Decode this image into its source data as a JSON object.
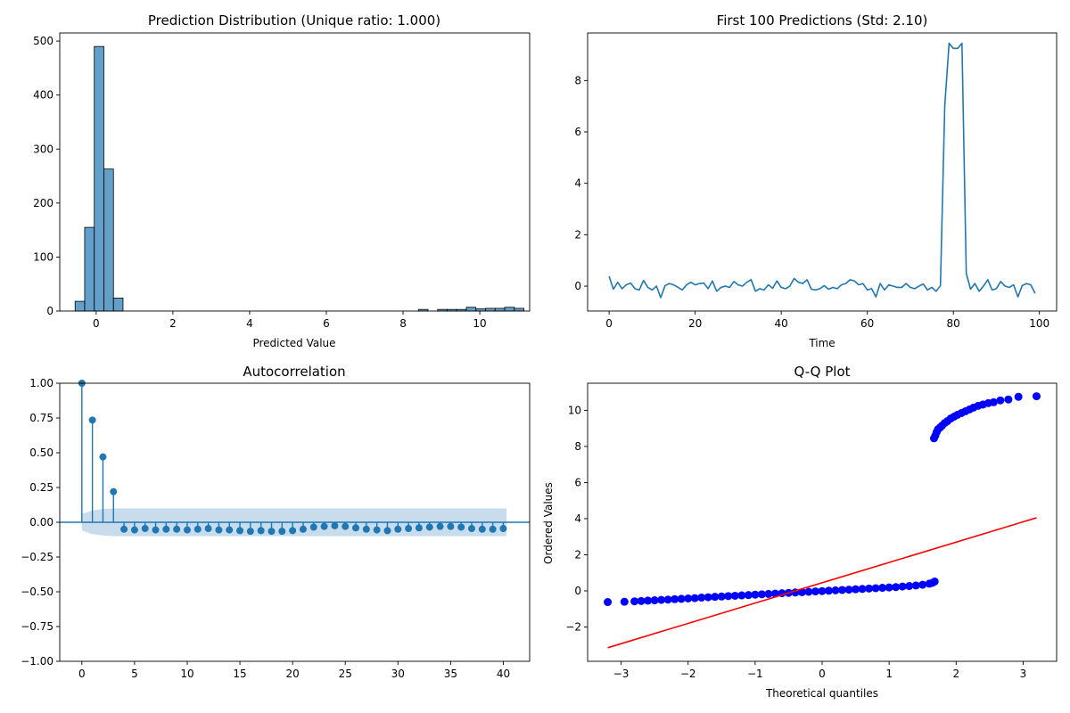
{
  "chart_data": [
    {
      "type": "bar",
      "subtype": "histogram",
      "title": "Prediction Distribution (Unique ratio: 1.000)",
      "xlabel": "Predicted Value",
      "ylabel": "",
      "xlim": [
        -0.95,
        11.3
      ],
      "ylim": [
        0,
        515
      ],
      "xticks": [
        0,
        2,
        4,
        6,
        8,
        10
      ],
      "yticks": [
        0,
        100,
        200,
        300,
        400,
        500
      ],
      "bin_width": 0.25,
      "bins": [
        {
          "x0": -0.55,
          "value": 18
        },
        {
          "x0": -0.3,
          "value": 155
        },
        {
          "x0": -0.05,
          "value": 490
        },
        {
          "x0": 0.2,
          "value": 263
        },
        {
          "x0": 0.45,
          "value": 24
        },
        {
          "x0": 8.4,
          "value": 3
        },
        {
          "x0": 8.9,
          "value": 3
        },
        {
          "x0": 9.15,
          "value": 3
        },
        {
          "x0": 9.4,
          "value": 3
        },
        {
          "x0": 9.65,
          "value": 7
        },
        {
          "x0": 9.9,
          "value": 4
        },
        {
          "x0": 10.15,
          "value": 5
        },
        {
          "x0": 10.4,
          "value": 5
        },
        {
          "x0": 10.65,
          "value": 7
        },
        {
          "x0": 10.9,
          "value": 5
        }
      ],
      "color": "#1f77b4",
      "grid": false
    },
    {
      "type": "line",
      "title": "First 100 Predictions (Std: 2.10)",
      "xlabel": "Time",
      "ylabel": "",
      "xlim": [
        -5,
        104
      ],
      "ylim": [
        -0.97,
        9.85
      ],
      "xticks": [
        0,
        20,
        40,
        60,
        80,
        100
      ],
      "yticks": [
        0,
        2,
        4,
        6,
        8
      ],
      "color": "#1f77b4",
      "values": [
        0.38,
        -0.12,
        0.15,
        -0.1,
        0.05,
        0.12,
        -0.1,
        -0.15,
        0.22,
        -0.05,
        -0.15,
        0.0,
        -0.45,
        0.02,
        0.1,
        0.05,
        -0.05,
        -0.15,
        0.05,
        0.15,
        0.05,
        0.1,
        0.12,
        -0.1,
        0.2,
        -0.2,
        -0.05,
        0.0,
        -0.05,
        0.18,
        0.05,
        0.0,
        0.15,
        0.25,
        -0.2,
        -0.1,
        -0.15,
        0.05,
        -0.08,
        0.2,
        -0.05,
        -0.1,
        0.0,
        0.3,
        0.15,
        0.1,
        0.25,
        -0.12,
        -0.15,
        -0.1,
        0.02,
        -0.12,
        -0.05,
        -0.1,
        0.05,
        0.1,
        0.25,
        0.2,
        0.05,
        0.1,
        -0.15,
        -0.1,
        -0.42,
        0.1,
        -0.15,
        0.05,
        0.0,
        -0.05,
        -0.05,
        0.1,
        -0.05,
        -0.1,
        0.0,
        0.08,
        -0.15,
        -0.05,
        -0.2,
        0.02,
        7.0,
        9.45,
        9.25,
        9.25,
        9.45,
        0.5,
        -0.12,
        0.1,
        -0.2,
        0.0,
        0.25,
        -0.15,
        -0.1,
        0.18,
        0.0,
        -0.05,
        0.05,
        -0.42,
        0.02,
        0.1,
        0.05,
        -0.28
      ],
      "grid": false
    },
    {
      "type": "scatter",
      "subtype": "autocorrelation-stem",
      "title": "Autocorrelation",
      "xlabel": "",
      "ylabel": "",
      "xlim": [
        -2.1,
        42.5
      ],
      "ylim": [
        -1.0,
        1.0
      ],
      "xticks": [
        0,
        5,
        10,
        15,
        20,
        25,
        30,
        35,
        40
      ],
      "yticks": [
        1.0,
        0.75,
        0.5,
        0.25,
        0.0,
        -0.25,
        -0.5,
        -0.75,
        -1.0
      ],
      "ytick_labels": [
        "1.00",
        "0.75",
        "0.50",
        "0.25",
        "0.00",
        "−0.25",
        "−0.50",
        "−0.75",
        "−1.00"
      ],
      "lags": [
        0,
        1,
        2,
        3,
        4,
        5,
        6,
        7,
        8,
        9,
        10,
        11,
        12,
        13,
        14,
        15,
        16,
        17,
        18,
        19,
        20,
        21,
        22,
        23,
        24,
        25,
        26,
        27,
        28,
        29,
        30,
        31,
        32,
        33,
        34,
        35,
        36,
        37,
        38,
        39,
        40
      ],
      "values": [
        1.0,
        0.735,
        0.47,
        0.22,
        -0.05,
        -0.055,
        -0.045,
        -0.055,
        -0.05,
        -0.05,
        -0.055,
        -0.05,
        -0.045,
        -0.055,
        -0.055,
        -0.06,
        -0.065,
        -0.06,
        -0.065,
        -0.065,
        -0.06,
        -0.05,
        -0.035,
        -0.03,
        -0.025,
        -0.03,
        -0.04,
        -0.05,
        -0.055,
        -0.06,
        -0.05,
        -0.045,
        -0.04,
        -0.035,
        -0.03,
        -0.03,
        -0.035,
        -0.045,
        -0.05,
        -0.05,
        -0.045
      ],
      "confidence_band": {
        "lags": [
          0,
          1,
          2,
          3,
          4,
          5,
          10,
          20,
          30,
          40.3
        ],
        "upper": [
          0.06,
          0.085,
          0.095,
          0.1,
          0.1,
          0.1,
          0.1,
          0.1,
          0.1,
          0.1
        ]
      },
      "color": "#1f77b4",
      "band_color": "#c3d8ea",
      "grid": false
    },
    {
      "type": "scatter",
      "subtype": "qq-plot",
      "title": "Q-Q Plot",
      "xlabel": "Theoretical quantiles",
      "ylabel": "Ordered Values",
      "xlim": [
        -3.5,
        3.5
      ],
      "ylim": [
        -3.9,
        11.5
      ],
      "xticks": [
        -3,
        -2,
        -1,
        0,
        1,
        2,
        3
      ],
      "xtick_labels": [
        "−3",
        "−2",
        "−1",
        "0",
        "1",
        "2",
        "3"
      ],
      "yticks": [
        -2,
        0,
        2,
        4,
        6,
        8,
        10
      ],
      "ytick_labels": [
        "−2",
        "0",
        "2",
        "4",
        "6",
        "8",
        "10"
      ],
      "points": [
        [
          -3.2,
          -0.62
        ],
        [
          -2.95,
          -0.6
        ],
        [
          -2.8,
          -0.58
        ],
        [
          -2.7,
          -0.56
        ],
        [
          -2.6,
          -0.54
        ],
        [
          -2.5,
          -0.52
        ],
        [
          -2.4,
          -0.5
        ],
        [
          -2.3,
          -0.48
        ],
        [
          -2.2,
          -0.46
        ],
        [
          -2.1,
          -0.44
        ],
        [
          -2.0,
          -0.42
        ],
        [
          -1.9,
          -0.4
        ],
        [
          -1.8,
          -0.37
        ],
        [
          -1.7,
          -0.35
        ],
        [
          -1.6,
          -0.33
        ],
        [
          -1.5,
          -0.31
        ],
        [
          -1.4,
          -0.29
        ],
        [
          -1.3,
          -0.27
        ],
        [
          -1.2,
          -0.25
        ],
        [
          -1.1,
          -0.23
        ],
        [
          -1.0,
          -0.21
        ],
        [
          -0.9,
          -0.19
        ],
        [
          -0.8,
          -0.17
        ],
        [
          -0.7,
          -0.15
        ],
        [
          -0.6,
          -0.13
        ],
        [
          -0.5,
          -0.11
        ],
        [
          -0.4,
          -0.09
        ],
        [
          -0.3,
          -0.07
        ],
        [
          -0.2,
          -0.05
        ],
        [
          -0.1,
          -0.03
        ],
        [
          0.0,
          -0.01
        ],
        [
          0.1,
          0.01
        ],
        [
          0.2,
          0.03
        ],
        [
          0.3,
          0.05
        ],
        [
          0.4,
          0.07
        ],
        [
          0.5,
          0.09
        ],
        [
          0.6,
          0.11
        ],
        [
          0.7,
          0.13
        ],
        [
          0.8,
          0.15
        ],
        [
          0.9,
          0.17
        ],
        [
          1.0,
          0.19
        ],
        [
          1.1,
          0.21
        ],
        [
          1.2,
          0.24
        ],
        [
          1.3,
          0.27
        ],
        [
          1.4,
          0.3
        ],
        [
          1.5,
          0.34
        ],
        [
          1.6,
          0.4
        ],
        [
          1.65,
          0.45
        ],
        [
          1.68,
          0.52
        ],
        [
          1.67,
          8.45
        ],
        [
          1.69,
          8.6
        ],
        [
          1.71,
          8.8
        ],
        [
          1.73,
          8.95
        ],
        [
          1.76,
          9.05
        ],
        [
          1.79,
          9.15
        ],
        [
          1.83,
          9.3
        ],
        [
          1.87,
          9.4
        ],
        [
          1.92,
          9.55
        ],
        [
          1.97,
          9.65
        ],
        [
          2.02,
          9.75
        ],
        [
          2.08,
          9.85
        ],
        [
          2.14,
          9.95
        ],
        [
          2.2,
          10.05
        ],
        [
          2.26,
          10.15
        ],
        [
          2.33,
          10.25
        ],
        [
          2.4,
          10.32
        ],
        [
          2.48,
          10.4
        ],
        [
          2.56,
          10.45
        ],
        [
          2.66,
          10.55
        ],
        [
          2.78,
          10.6
        ],
        [
          2.93,
          10.75
        ],
        [
          3.2,
          10.78
        ]
      ],
      "fit_line": [
        [
          -3.2,
          -3.15
        ],
        [
          3.2,
          4.05
        ]
      ],
      "point_color": "#0000ff",
      "line_color": "#ff0000",
      "grid": false
    }
  ]
}
